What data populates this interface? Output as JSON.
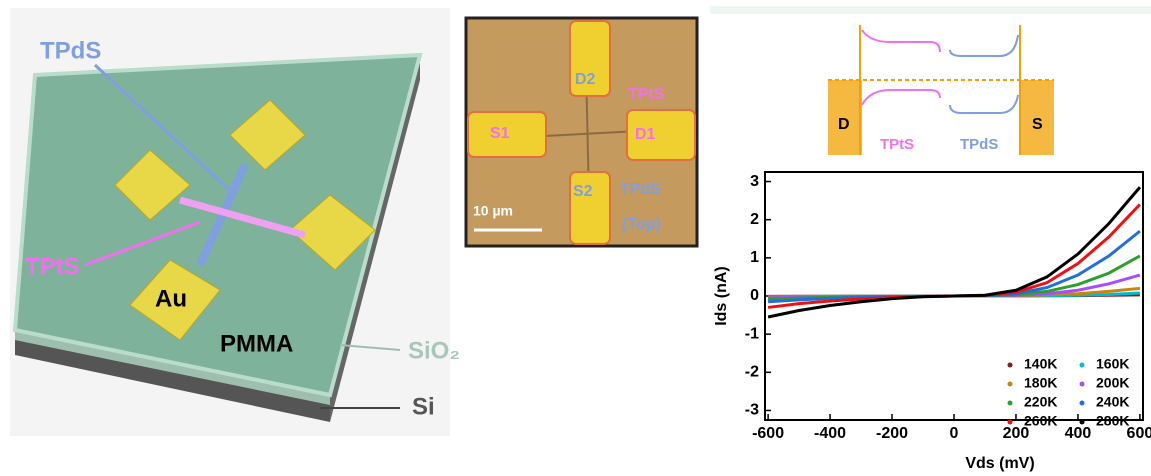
{
  "device": {
    "labels": [
      "TPdS",
      "TPtS",
      "Au",
      "PMMA",
      "SiO₂",
      "Si"
    ]
  },
  "micrograph": {
    "labels": [
      "D2",
      "S1",
      "D1",
      "S2",
      "TPtS",
      "TPdS",
      "(Top)",
      "10 µm"
    ]
  },
  "band_diagram": {
    "labels": [
      "D",
      "S",
      "TPtS",
      "TPdS"
    ]
  },
  "chart_data": {
    "type": "line",
    "x_label": "Vds (mV)",
    "y_label": "Ids (nA)",
    "x": [
      -600,
      -500,
      -400,
      -300,
      -200,
      -100,
      0,
      100,
      200,
      300,
      400,
      500,
      600
    ],
    "xlim": [
      -610,
      610
    ],
    "ylim": [
      -3.25,
      3.25
    ],
    "xticks": [
      -600,
      -400,
      -200,
      0,
      200,
      400,
      600
    ],
    "yticks": [
      -3,
      -2,
      -1,
      0,
      1,
      2,
      3
    ],
    "legend": "lower right",
    "series": [
      {
        "name": "140K",
        "color": "#8b1a1a",
        "values": [
          -0.01,
          -0.008,
          -0.005,
          -0.003,
          -0.002,
          -0.001,
          0,
          0.001,
          0.002,
          0.005,
          0.01,
          0.02,
          0.03
        ]
      },
      {
        "name": "160K",
        "color": "#00bcd4",
        "values": [
          -0.02,
          -0.015,
          -0.01,
          -0.006,
          -0.003,
          -0.001,
          0,
          0.001,
          0.004,
          0.01,
          0.02,
          0.04,
          0.08
        ]
      },
      {
        "name": "180K",
        "color": "#c8860b",
        "values": [
          -0.03,
          -0.02,
          -0.014,
          -0.008,
          -0.004,
          -0.001,
          0,
          0.002,
          0.01,
          0.03,
          0.06,
          0.12,
          0.2
        ]
      },
      {
        "name": "200K",
        "color": "#a64dff",
        "values": [
          -0.05,
          -0.035,
          -0.022,
          -0.013,
          -0.006,
          -0.002,
          0,
          0.004,
          0.02,
          0.06,
          0.15,
          0.32,
          0.55
        ]
      },
      {
        "name": "220K",
        "color": "#2ca02c",
        "values": [
          -0.08,
          -0.055,
          -0.035,
          -0.02,
          -0.01,
          -0.003,
          0,
          0.006,
          0.035,
          0.12,
          0.3,
          0.6,
          1.05
        ]
      },
      {
        "name": "240K",
        "color": "#1f6fdc",
        "values": [
          -0.15,
          -0.1,
          -0.06,
          -0.035,
          -0.018,
          -0.005,
          0,
          0.01,
          0.06,
          0.22,
          0.55,
          1.05,
          1.7
        ]
      },
      {
        "name": "260K",
        "color": "#ee1111",
        "values": [
          -0.3,
          -0.2,
          -0.13,
          -0.08,
          -0.04,
          -0.01,
          0,
          0.015,
          0.1,
          0.35,
          0.85,
          1.55,
          2.4
        ]
      },
      {
        "name": "280K",
        "color": "#000000",
        "values": [
          -0.55,
          -0.38,
          -0.25,
          -0.15,
          -0.07,
          -0.02,
          0,
          0.02,
          0.15,
          0.5,
          1.1,
          1.9,
          2.85
        ]
      }
    ]
  }
}
